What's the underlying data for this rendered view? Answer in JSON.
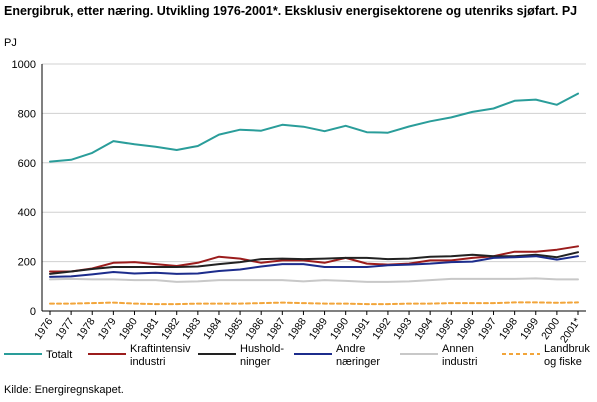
{
  "title": "Energibruk, etter næring. Utvikling 1976-2001*. Eksklusiv energisektorene og utenriks sjøfart. PJ",
  "source": "Kilde: Energiregnskapet.",
  "chart_data": {
    "type": "line",
    "title": "Energibruk, etter næring. Utvikling 1976-2001*. Eksklusiv energisektorene og utenriks sjøfart. PJ",
    "ylabel": "PJ",
    "xlabel": "",
    "ylim": [
      0,
      1000
    ],
    "yticks": [
      0,
      200,
      400,
      600,
      800,
      1000
    ],
    "grid": "horizontal",
    "legend_position": "bottom",
    "categories": [
      "1976",
      "1977",
      "1978",
      "1979",
      "1980",
      "1981",
      "1982",
      "1983",
      "1984",
      "1985",
      "1986",
      "1987",
      "1988",
      "1989",
      "1990",
      "1991",
      "1992",
      "1993",
      "1994",
      "1995",
      "1996",
      "1997",
      "1998",
      "1999",
      "2000",
      "2001*"
    ],
    "series": [
      {
        "name": "Totalt",
        "legend_lines": [
          "Totalt"
        ],
        "color": "#2a9d9a",
        "dashed": false,
        "values": [
          605,
          612,
          640,
          688,
          675,
          665,
          652,
          668,
          714,
          734,
          730,
          754,
          746,
          728,
          750,
          724,
          722,
          747,
          768,
          784,
          806,
          820,
          851,
          856,
          835,
          880
        ]
      },
      {
        "name": "Kraftintensiv industri",
        "legend_lines": [
          "Kraftintensiv",
          "industri"
        ],
        "color": "#9b1c1c",
        "dashed": false,
        "values": [
          160,
          160,
          172,
          195,
          198,
          190,
          182,
          195,
          220,
          212,
          195,
          205,
          205,
          195,
          215,
          192,
          188,
          192,
          205,
          205,
          215,
          222,
          240,
          240,
          248,
          262
        ]
      },
      {
        "name": "Husholdninger",
        "legend_lines": [
          "Hushold-",
          "ninger"
        ],
        "color": "#222222",
        "dashed": false,
        "values": [
          150,
          160,
          170,
          178,
          178,
          178,
          178,
          180,
          190,
          198,
          210,
          212,
          210,
          212,
          215,
          215,
          210,
          212,
          220,
          222,
          228,
          222,
          222,
          228,
          218,
          238
        ]
      },
      {
        "name": "Andre næringer",
        "legend_lines": [
          "Andre",
          "næringer"
        ],
        "color": "#1c2c8c",
        "dashed": false,
        "values": [
          138,
          140,
          148,
          158,
          152,
          155,
          150,
          152,
          162,
          168,
          180,
          190,
          190,
          178,
          178,
          178,
          185,
          188,
          192,
          198,
          200,
          215,
          218,
          222,
          208,
          222
        ]
      },
      {
        "name": "Annen industri",
        "legend_lines": [
          "Annen",
          "industri"
        ],
        "color": "#c8c8c8",
        "dashed": false,
        "values": [
          128,
          130,
          128,
          128,
          125,
          125,
          118,
          120,
          125,
          125,
          125,
          125,
          120,
          125,
          122,
          118,
          118,
          120,
          125,
          130,
          130,
          130,
          130,
          132,
          128,
          128
        ]
      },
      {
        "name": "Landbruk og fiske",
        "legend_lines": [
          "Landbruk",
          "og fiske"
        ],
        "color": "#f2a53a",
        "dashed": true,
        "values": [
          30,
          30,
          32,
          34,
          30,
          28,
          28,
          30,
          30,
          30,
          32,
          34,
          32,
          30,
          30,
          28,
          28,
          30,
          30,
          32,
          32,
          32,
          35,
          35,
          33,
          35
        ]
      }
    ]
  }
}
